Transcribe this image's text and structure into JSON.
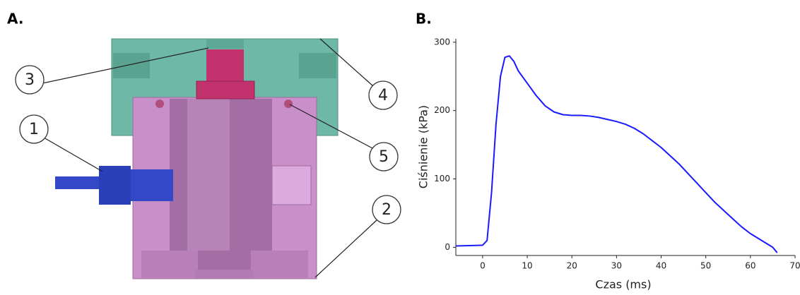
{
  "panel_labels": [
    "A.",
    "B."
  ],
  "diagram": {
    "callouts": [
      "1",
      "2",
      "3",
      "4",
      "5"
    ]
  },
  "chart_data": {
    "type": "line",
    "x_label": "Czas (ms)",
    "y_label": "Ciśnienie (kPa)",
    "x": [
      -6,
      0,
      1,
      2,
      3,
      4,
      5,
      6,
      7,
      8,
      10,
      12,
      14,
      16,
      18,
      20,
      22,
      24,
      26,
      28,
      30,
      32,
      34,
      36,
      38,
      40,
      42,
      44,
      46,
      48,
      50,
      52,
      54,
      56,
      58,
      60,
      62,
      64,
      65,
      66
    ],
    "series": [
      {
        "color": "#1a1aff",
        "values": [
          2,
          3,
          10,
          80,
          180,
          250,
          278,
          280,
          272,
          258,
          240,
          222,
          207,
          198,
          194,
          193,
          193,
          192,
          190,
          187,
          184,
          180,
          174,
          166,
          156,
          146,
          134,
          122,
          108,
          94,
          80,
          66,
          54,
          42,
          30,
          20,
          12,
          4,
          0,
          -8
        ]
      }
    ],
    "xlim": [
      -6,
      70
    ],
    "ylim": [
      -12,
      305
    ],
    "xticks": [
      0,
      10,
      20,
      30,
      40,
      50,
      60,
      70
    ],
    "yticks": [
      0,
      100,
      200,
      300
    ]
  }
}
